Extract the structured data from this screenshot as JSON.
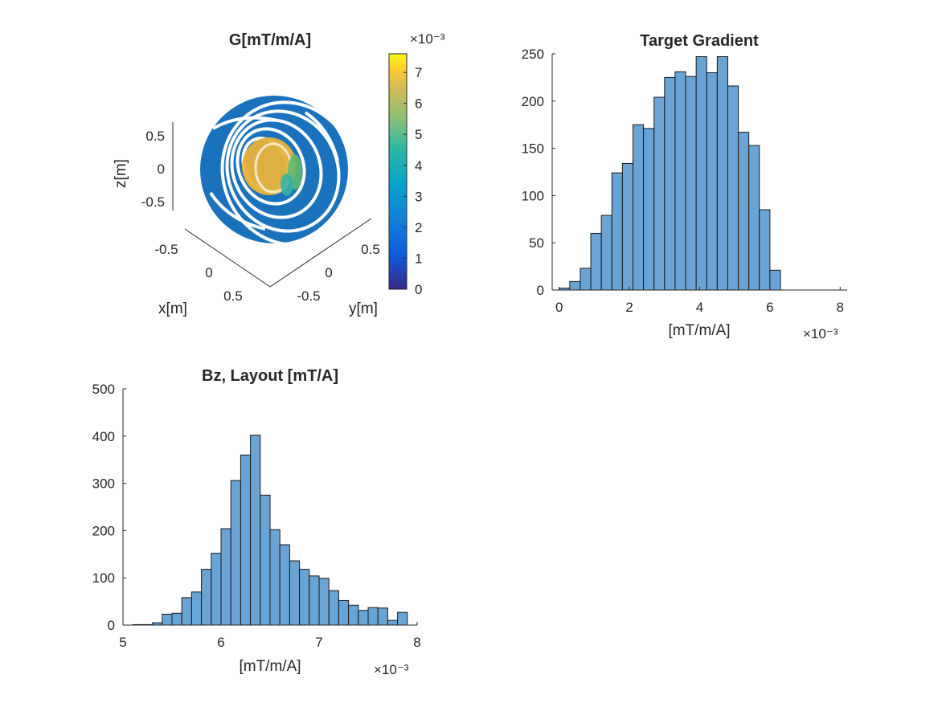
{
  "chart_data": [
    {
      "type": "scatter3d",
      "title": "G[mT/m/A]",
      "xlabel": "x[m]",
      "ylabel": "y[m]",
      "zlabel": "z[m]",
      "x_ticks": [
        "-0.5",
        "0",
        "0.5"
      ],
      "y_ticks": [
        "-0.5",
        "0",
        "0.5"
      ],
      "z_ticks": [
        "0.5",
        "0",
        "-0.5"
      ],
      "colorbar": {
        "range": [
          0,
          7.6
        ],
        "ticks": [
          "0",
          "1",
          "2",
          "3",
          "4",
          "5",
          "6",
          "7"
        ],
        "exponent_label": "×10⁻³",
        "colormap": "parula"
      },
      "colors": {
        "sphere": "#1a72bd",
        "hotspot": "#e8b43a"
      }
    },
    {
      "type": "bar",
      "title": "Target Gradient",
      "xlabel": "[mT/m/A]",
      "x_exponent_label": "×10⁻³",
      "xlim": [
        -0.2,
        8.2
      ],
      "ylim": [
        0,
        250
      ],
      "x_ticks": [
        "0",
        "2",
        "4",
        "6",
        "8"
      ],
      "y_ticks": [
        "0",
        "50",
        "100",
        "150",
        "200",
        "250"
      ],
      "bin_edges": [
        0,
        0.3,
        0.6,
        0.9,
        1.2,
        1.5,
        1.8,
        2.1,
        2.4,
        2.7,
        3.0,
        3.3,
        3.6,
        3.9,
        4.2,
        4.5,
        4.8,
        5.1,
        5.4,
        5.7,
        6.0,
        6.3,
        6.6
      ],
      "values": [
        2,
        9,
        23,
        60,
        79,
        124,
        134,
        175,
        171,
        204,
        225,
        231,
        226,
        247,
        230,
        247,
        216,
        167,
        153,
        85,
        21,
        0
      ],
      "bar_color": "#6aa4d4"
    },
    {
      "type": "bar",
      "title": "Bz, Layout [mT/A]",
      "xlabel": "[mT/m/A]",
      "x_exponent_label": "×10⁻³",
      "xlim": [
        5,
        8
      ],
      "ylim": [
        0,
        500
      ],
      "x_ticks": [
        "5",
        "6",
        "7",
        "8"
      ],
      "y_ticks": [
        "0",
        "100",
        "200",
        "300",
        "400",
        "500"
      ],
      "bin_edges": [
        5.1,
        5.2,
        5.3,
        5.4,
        5.5,
        5.6,
        5.7,
        5.8,
        5.9,
        6.0,
        6.1,
        6.2,
        6.3,
        6.4,
        6.5,
        6.6,
        6.7,
        6.8,
        6.9,
        7.0,
        7.1,
        7.2,
        7.3,
        7.4,
        7.5,
        7.6,
        7.7,
        7.8,
        7.9
      ],
      "values": [
        1,
        1,
        5,
        23,
        25,
        58,
        70,
        118,
        152,
        204,
        306,
        360,
        402,
        275,
        202,
        170,
        136,
        118,
        104,
        99,
        73,
        52,
        42,
        31,
        37,
        36,
        10,
        27
      ],
      "bar_color": "#6aa4d4"
    }
  ]
}
